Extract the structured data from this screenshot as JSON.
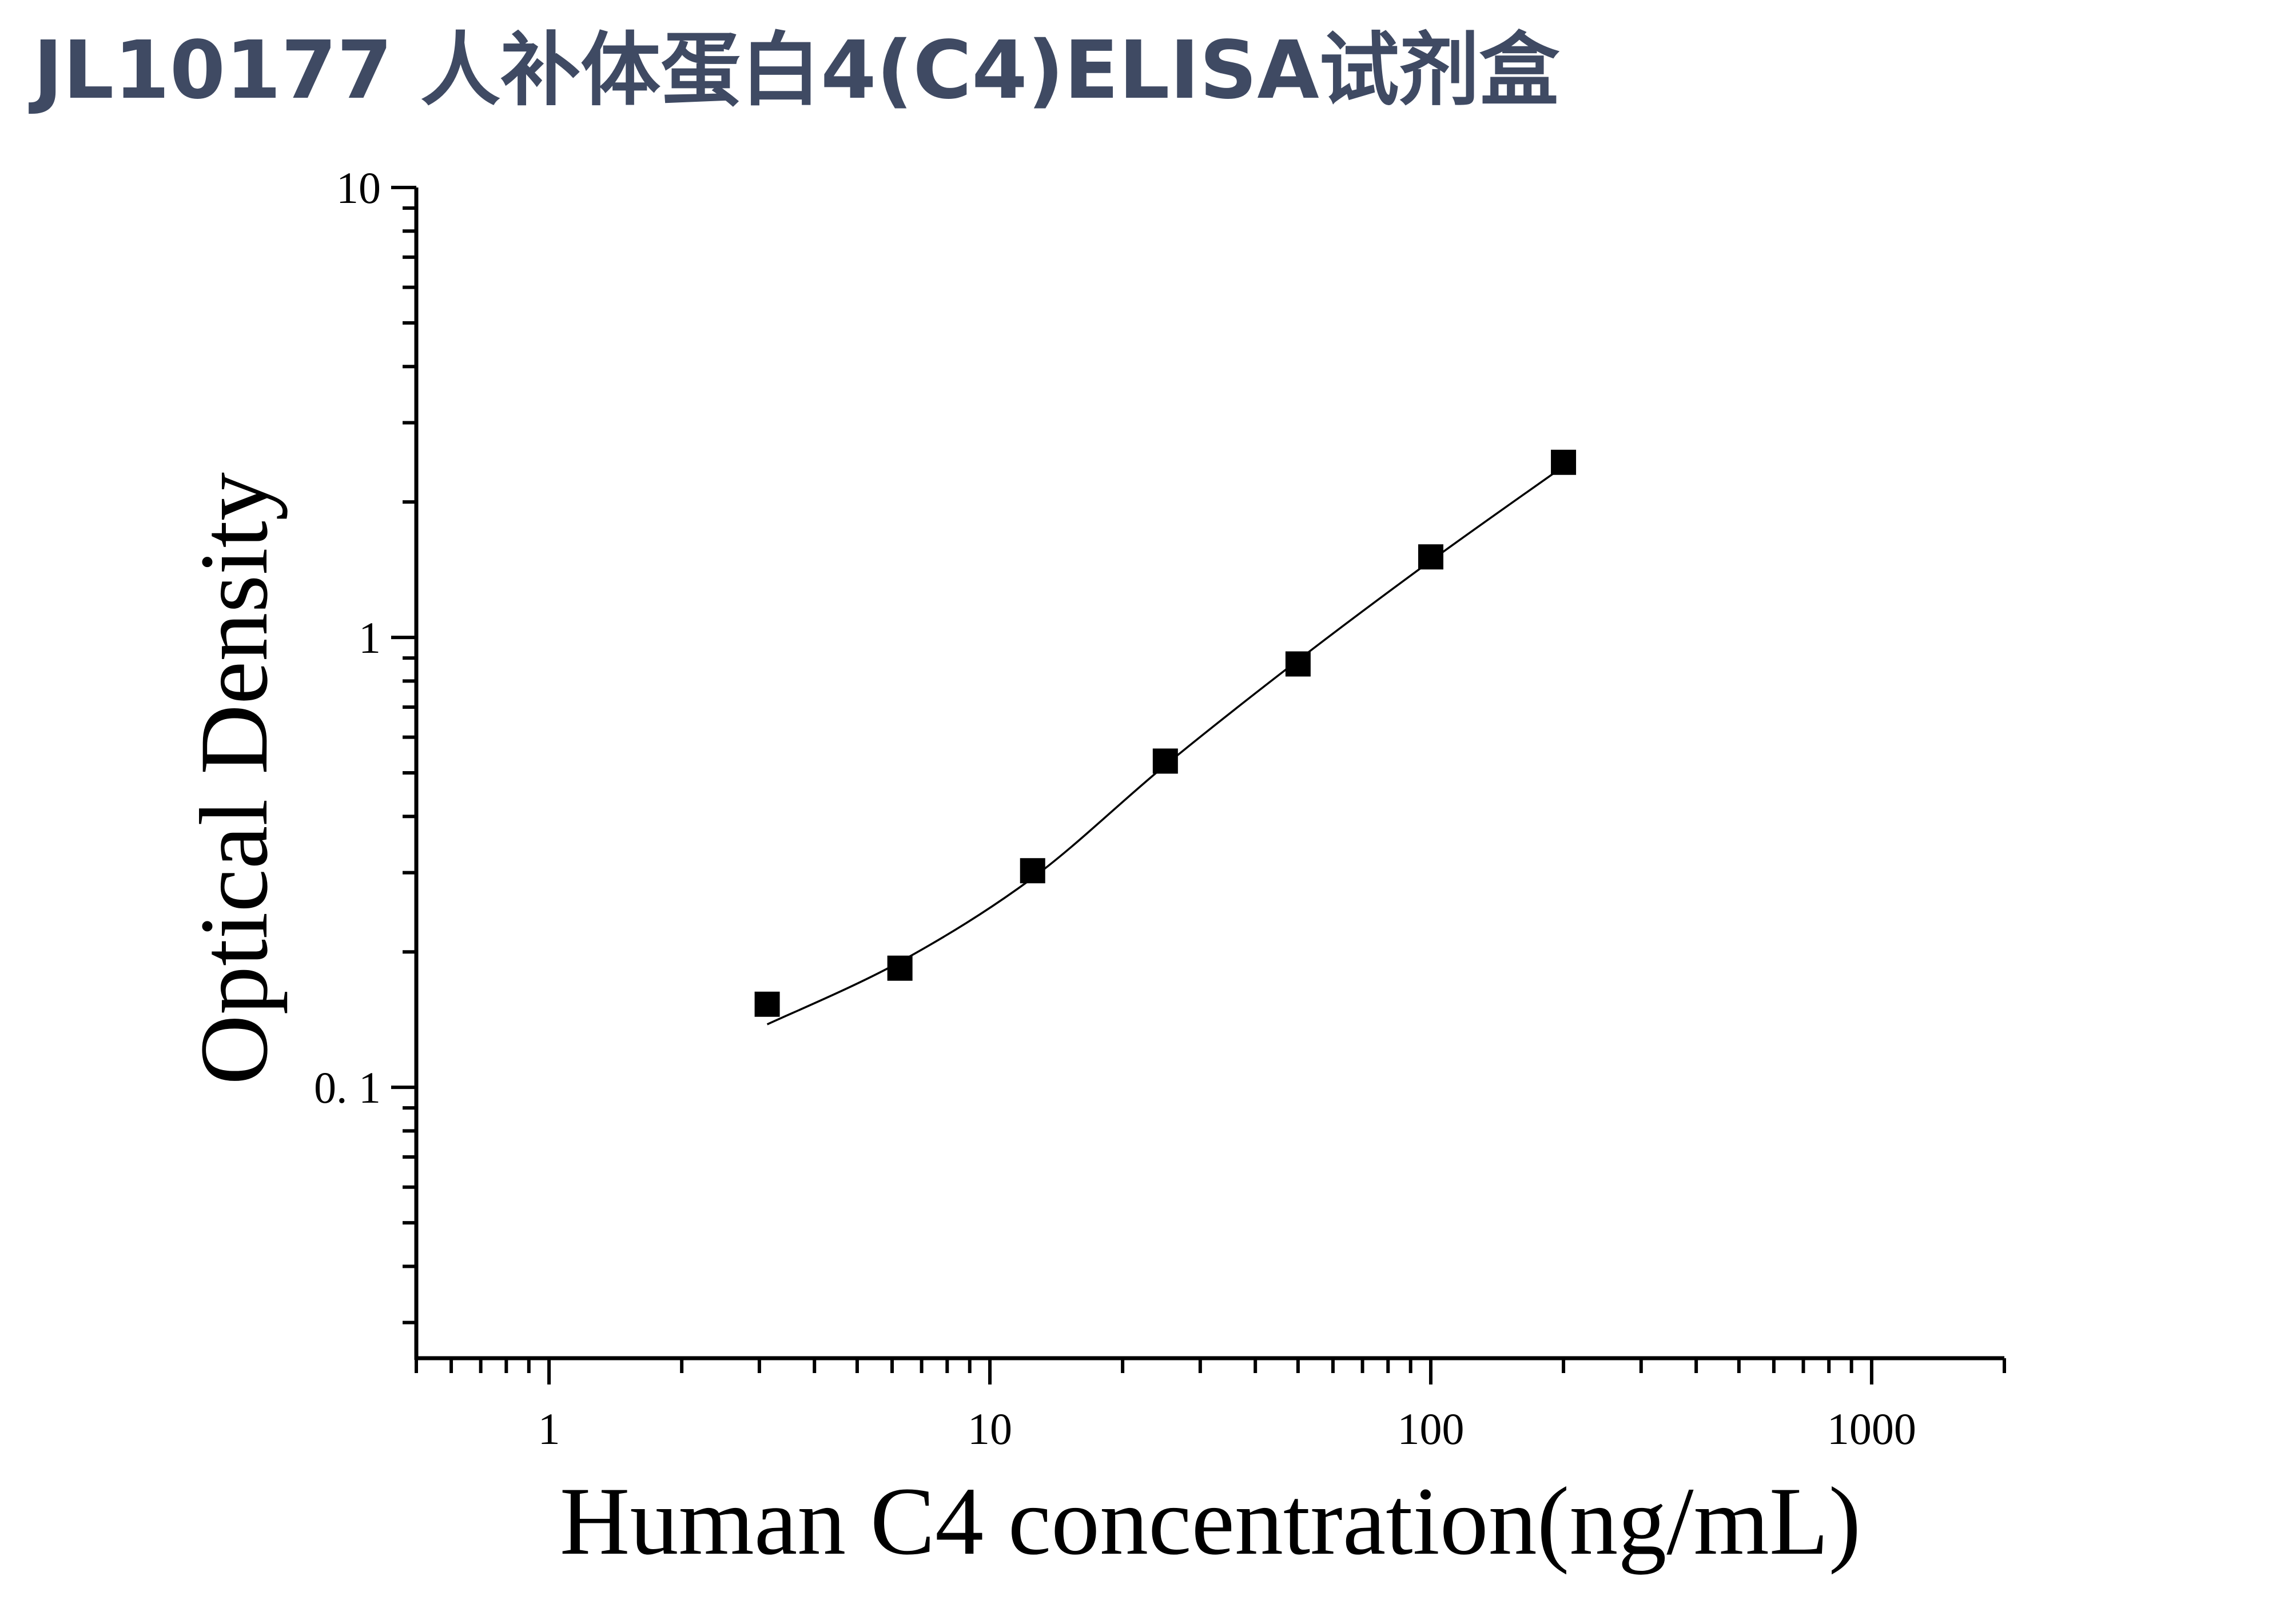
{
  "header": {
    "title": "JL10177 人补体蛋白4(C4)ELISA试剂盒"
  },
  "chart_data": {
    "type": "scatter",
    "xlabel": "Human C4 concentration(ng/mL)",
    "ylabel": "Optical Density",
    "x_scale": "log",
    "y_scale": "log",
    "xlim": [
      0.5,
      2000
    ],
    "ylim": [
      0.025,
      10
    ],
    "x_ticks": [
      1,
      10,
      100,
      1000
    ],
    "x_tick_labels": [
      "1",
      "10",
      "100",
      "1000"
    ],
    "y_ticks": [
      0.1,
      1,
      10
    ],
    "y_tick_labels": [
      "0. 1",
      "1",
      "10"
    ],
    "grid": false,
    "marker_color": "#000000",
    "line_color": "#000000",
    "series": [
      {
        "x": [
          3.125,
          6.25,
          12.5,
          25,
          50,
          100,
          200
        ],
        "y": [
          0.153,
          0.184,
          0.303,
          0.531,
          0.873,
          1.51,
          2.45
        ]
      }
    ],
    "fit_curve": {
      "x": [
        3.125,
        6.25,
        12.5,
        25,
        50,
        100,
        200
      ],
      "y": [
        0.138,
        0.19,
        0.292,
        0.52,
        0.89,
        1.48,
        2.4
      ]
    }
  }
}
